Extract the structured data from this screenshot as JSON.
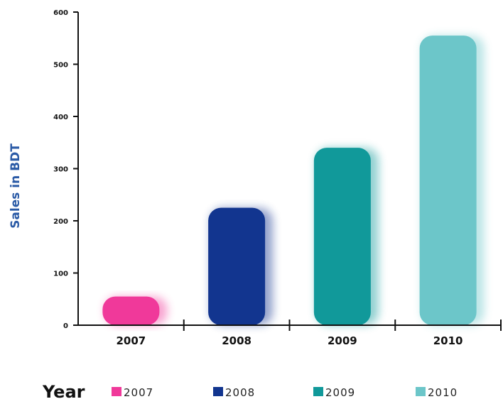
{
  "chart_data": {
    "type": "bar",
    "title": "",
    "xlabel": "Year",
    "ylabel": "Sales in BDT",
    "categories": [
      "2007",
      "2008",
      "2009",
      "2010"
    ],
    "values": [
      55,
      225,
      340,
      555
    ],
    "colors": [
      "#f0399a",
      "#12358f",
      "#11999a",
      "#6cc6c9"
    ],
    "ylim": [
      0,
      600
    ],
    "yticks": [
      "0",
      "100",
      "200",
      "300",
      "400",
      "500",
      "600"
    ],
    "ytick_values": [
      0,
      100,
      200,
      300,
      400,
      500,
      600
    ],
    "grid": false,
    "legend": {
      "placement": "bottom",
      "entries": [
        "2007",
        "2008",
        "2009",
        "2010"
      ]
    },
    "ylabel_color": "#2a5aa6",
    "axis_color": "#111111"
  }
}
